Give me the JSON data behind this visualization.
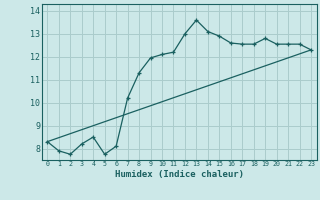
{
  "xlabel": "Humidex (Indice chaleur)",
  "background_color": "#cce8e8",
  "grid_color": "#aacccc",
  "line_color": "#1a6060",
  "xlim": [
    -0.5,
    23.5
  ],
  "ylim": [
    7.5,
    14.3
  ],
  "x_ticks": [
    0,
    1,
    2,
    3,
    4,
    5,
    6,
    7,
    8,
    9,
    10,
    11,
    12,
    13,
    14,
    15,
    16,
    17,
    18,
    19,
    20,
    21,
    22,
    23
  ],
  "y_ticks": [
    8,
    9,
    10,
    11,
    12,
    13,
    14
  ],
  "series1_x": [
    0,
    1,
    2,
    3,
    4,
    5,
    6,
    7,
    8,
    9,
    10,
    11,
    12,
    13,
    14,
    15,
    16,
    17,
    18,
    19,
    20,
    21,
    22,
    23
  ],
  "series1_y": [
    8.3,
    7.9,
    7.75,
    8.2,
    8.5,
    7.75,
    8.1,
    10.2,
    11.3,
    11.95,
    12.1,
    12.2,
    13.0,
    13.6,
    13.1,
    12.9,
    12.6,
    12.55,
    12.55,
    12.8,
    12.55,
    12.55,
    12.55,
    12.3
  ],
  "series2_x": [
    0,
    23
  ],
  "series2_y": [
    8.3,
    12.3
  ],
  "marker": "+"
}
